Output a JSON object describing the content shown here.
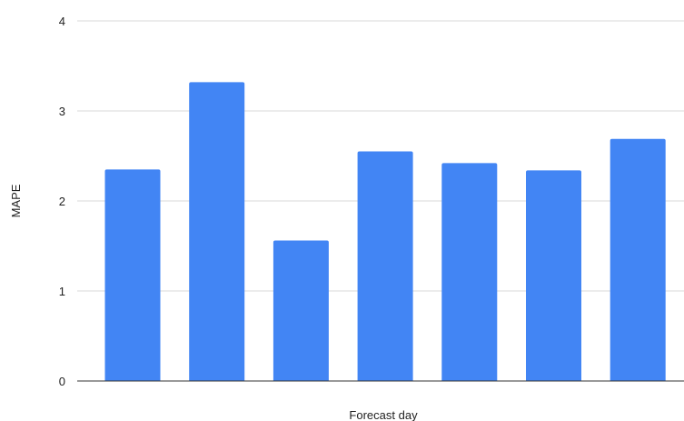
{
  "chart_data": {
    "type": "bar",
    "title": "",
    "xlabel": "Forecast day",
    "ylabel": "MAPE",
    "categories": [
      "",
      "",
      "",
      "",
      "",
      "",
      ""
    ],
    "values": [
      2.35,
      3.32,
      1.56,
      2.55,
      2.42,
      2.34,
      2.69
    ],
    "ylim": [
      0,
      4
    ],
    "yticks": [
      0,
      1,
      2,
      3,
      4
    ],
    "grid": true,
    "legend": "none",
    "bar_color": "#4285f4"
  }
}
